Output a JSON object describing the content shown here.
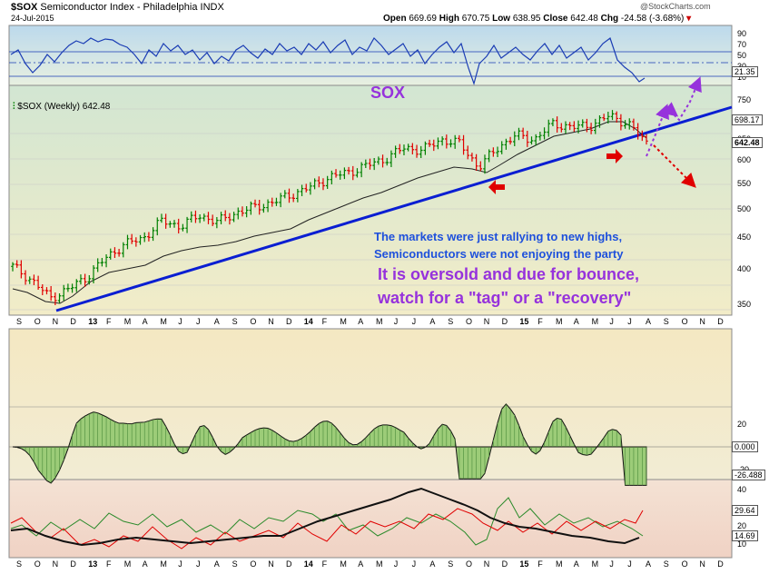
{
  "header": {
    "symbol": "$SOX",
    "description": "Semiconductor Index - Philadelphia  INDX",
    "date": "24-Jul-2015",
    "watermark": "@StockCharts.com",
    "open_label": "Open",
    "open": "669.69",
    "high_label": "High",
    "high": "670.75",
    "low_label": "Low",
    "low": "638.95",
    "close_label": "Close",
    "close": "642.48",
    "chg_label": "Chg",
    "chg": "-24.58 (-3.68%)"
  },
  "colors": {
    "panel_border": "#8a8a8a",
    "rsi_bg_top": "#bcd9ec",
    "rsi_bg_bottom": "#e8f0e0",
    "price_bg_top": "#d2e6d2",
    "price_bg_bottom": "#f2ecc8",
    "macd_bg_top": "#f4e8c2",
    "macd_bg_bottom": "#f2ecd4",
    "adx_bg_top": "#f4e2d4",
    "adx_bg_bottom": "#f0d2c4",
    "up_bar": "#008000",
    "down_bar": "#e00000",
    "trendline": "#0a1ed2",
    "annotation_blue": "#1e50dc",
    "annotation_purple": "#9632dc",
    "rsi_line": "#1a3cb4",
    "macd_fill": "#9ccc78",
    "ma_line": "#111111",
    "red_arrow": "#e00000"
  },
  "annotations": {
    "sox_label": "SOX",
    "line1": "The markets were just rallying to new highs,",
    "line2": "Semiconductors were not enjoying the party",
    "line3": "It is oversold and due for  bounce,",
    "line4": "watch for a \"tag\" or a \"recovery\""
  },
  "price_panel": {
    "legend": "$SOX (Weekly) 642.48",
    "right_labels": [
      "698.17",
      "642.48"
    ]
  },
  "rsi_panel": {
    "ticks": [
      "90",
      "70",
      "50",
      "30",
      "10"
    ],
    "value_label": "21.35"
  },
  "macd_panel": {
    "ticks": [
      "20",
      "0.000",
      "-20"
    ],
    "value_label": "-26.488"
  },
  "adx_panel": {
    "ticks": [
      "40",
      "20",
      "10"
    ],
    "value_labels": [
      "29.64",
      "14.69"
    ]
  },
  "x_axis": {
    "months": [
      "S",
      "O",
      "N",
      "D",
      "13",
      "F",
      "M",
      "A",
      "M",
      "J",
      "J",
      "A",
      "S",
      "O",
      "N",
      "D",
      "14",
      "F",
      "M",
      "A",
      "M",
      "J",
      "J",
      "A",
      "S",
      "O",
      "N",
      "D",
      "15",
      "F",
      "M",
      "A",
      "M",
      "J",
      "J",
      "A",
      "S",
      "O",
      "N",
      "D"
    ]
  },
  "chart_data": {
    "type": "ohlc",
    "title": "$SOX Semiconductor Index - Philadelphia (Weekly)",
    "period": "Sep 2012 - Jul 2015",
    "y_axis": {
      "ticks": [
        350,
        400,
        450,
        500,
        550,
        600,
        650,
        700,
        750
      ],
      "ylim": [
        340,
        790
      ],
      "scale": "log",
      "side": "right"
    },
    "series": [
      {
        "name": "$SOX (Weekly)",
        "kind": "close_approx",
        "dates": [
          "2012-09",
          "2012-10",
          "2012-11",
          "2012-12",
          "2013-01",
          "2013-02",
          "2013-03",
          "2013-04",
          "2013-05",
          "2013-06",
          "2013-07",
          "2013-08",
          "2013-09",
          "2013-10",
          "2013-11",
          "2013-12",
          "2014-01",
          "2014-02",
          "2014-03",
          "2014-04",
          "2014-05",
          "2014-06",
          "2014-07",
          "2014-08",
          "2014-09",
          "2014-10",
          "2014-11",
          "2014-12",
          "2015-01",
          "2015-02",
          "2015-03",
          "2015-04",
          "2015-05",
          "2015-06",
          "2015-07"
        ],
        "values": [
          405,
          385,
          360,
          372,
          390,
          418,
          440,
          450,
          480,
          470,
          490,
          478,
          495,
          505,
          515,
          530,
          545,
          565,
          575,
          590,
          605,
          630,
          625,
          650,
          640,
          585,
          630,
          660,
          650,
          690,
          680,
          685,
          710,
          690,
          642
        ]
      }
    ],
    "last": {
      "open": 669.69,
      "high": 670.75,
      "low": 638.95,
      "close": 642.48,
      "change": -24.58,
      "change_pct": -3.68
    },
    "moving_average_last": 698.17,
    "rsi": {
      "last": 21.35,
      "ylim": [
        0,
        100
      ],
      "levels": [
        70,
        50,
        30
      ]
    },
    "macd_histogram": {
      "last": -26.488,
      "zero": 0.0
    },
    "adx": {
      "last_values": [
        29.64,
        14.69
      ]
    }
  }
}
